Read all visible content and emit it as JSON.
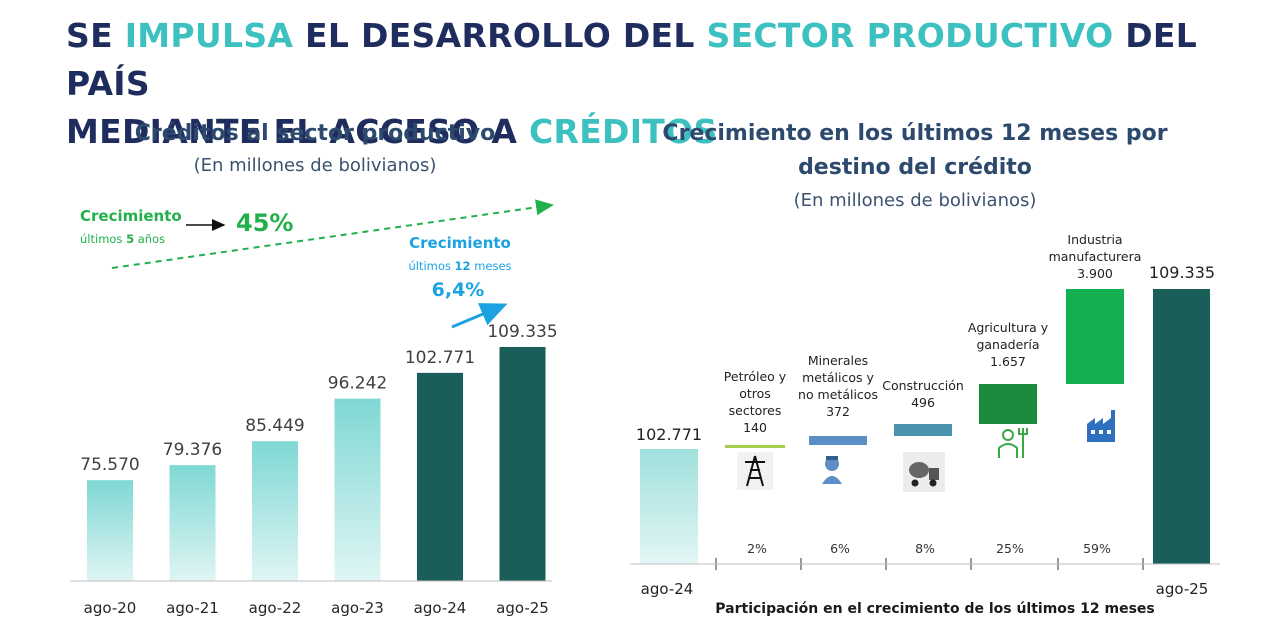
{
  "title": {
    "line1": [
      {
        "text": "SE ",
        "hl": false
      },
      {
        "text": "IMPULSA",
        "hl": true
      },
      {
        "text": " EL DESARROLLO DEL ",
        "hl": false
      },
      {
        "text": "SECTOR PRODUCTIVO",
        "hl": true
      },
      {
        "text": " DEL PAÍS",
        "hl": false
      }
    ],
    "line2": [
      {
        "text": "MEDIANTE EL ACCESO A ",
        "hl": false
      },
      {
        "text": "CRÉDITOS",
        "hl": true
      }
    ]
  },
  "colors": {
    "title": "#1f2d5e",
    "highlight": "#3cc0c0",
    "bar_light": "#8adcd8",
    "bar_dark": "#1a5e5a",
    "green_growth": "#22b04c",
    "blue_growth": "#1aa3e0"
  },
  "chart_data": [
    {
      "type": "bar",
      "title": "Créditos al sector productivo",
      "subtitle": "(En millones de bolivianos)",
      "categories": [
        "ago-20",
        "ago-21",
        "ago-22",
        "ago-23",
        "ago-24",
        "ago-25"
      ],
      "values": [
        75570,
        79376,
        85449,
        96242,
        102771,
        109335
      ],
      "value_labels": [
        "75.570",
        "79.376",
        "85.449",
        "96.242",
        "102.771",
        "109.335"
      ],
      "highlighted": [
        false,
        false,
        false,
        false,
        true,
        true
      ],
      "annotations": {
        "five_year": {
          "label": "Crecimiento",
          "sub_prefix": "últimos ",
          "sub_bold": "5",
          "sub_suffix": " años",
          "value": "45%"
        },
        "twelve_month": {
          "label": "Crecimiento",
          "sub_prefix": "últimos ",
          "sub_bold": "12",
          "sub_suffix": " meses",
          "value": "6,4%"
        }
      }
    },
    {
      "type": "waterfall",
      "title_line1": "Crecimiento en los últimos 12 meses por",
      "title_line2": "destino del crédito",
      "subtitle": "(En millones de bolivianos)",
      "start": {
        "label": "ago-24",
        "value": 102771,
        "value_label": "102.771"
      },
      "end": {
        "label": "ago-25",
        "value": 109335,
        "value_label": "109.335"
      },
      "steps": [
        {
          "name_lines": [
            "Petróleo y",
            "otros",
            "sectores"
          ],
          "value": 140,
          "value_label": "140",
          "share": "2%",
          "color": "#a6cc4c",
          "icon": "oil-rig-icon"
        },
        {
          "name_lines": [
            "Minerales",
            "metálicos y",
            "no metálicos"
          ],
          "value": 372,
          "value_label": "372",
          "share": "6%",
          "color": "#5b8fc6",
          "icon": "miner-icon"
        },
        {
          "name_lines": [
            "Construcción"
          ],
          "value": 496,
          "value_label": "496",
          "share": "8%",
          "color": "#4a93ac",
          "icon": "cement-truck-icon"
        },
        {
          "name_lines": [
            "Agricultura y",
            "ganadería"
          ],
          "value": 1657,
          "value_label": "1.657",
          "share": "25%",
          "color": "#1b8a3c",
          "icon": "farmer-icon"
        },
        {
          "name_lines": [
            "Industria",
            "manufacturera"
          ],
          "value": 3900,
          "value_label": "3.900",
          "share": "59%",
          "color": "#12b050",
          "icon": "factory-icon"
        }
      ],
      "xlabel": "Participación en el crecimiento de los últimos 12 meses"
    }
  ]
}
